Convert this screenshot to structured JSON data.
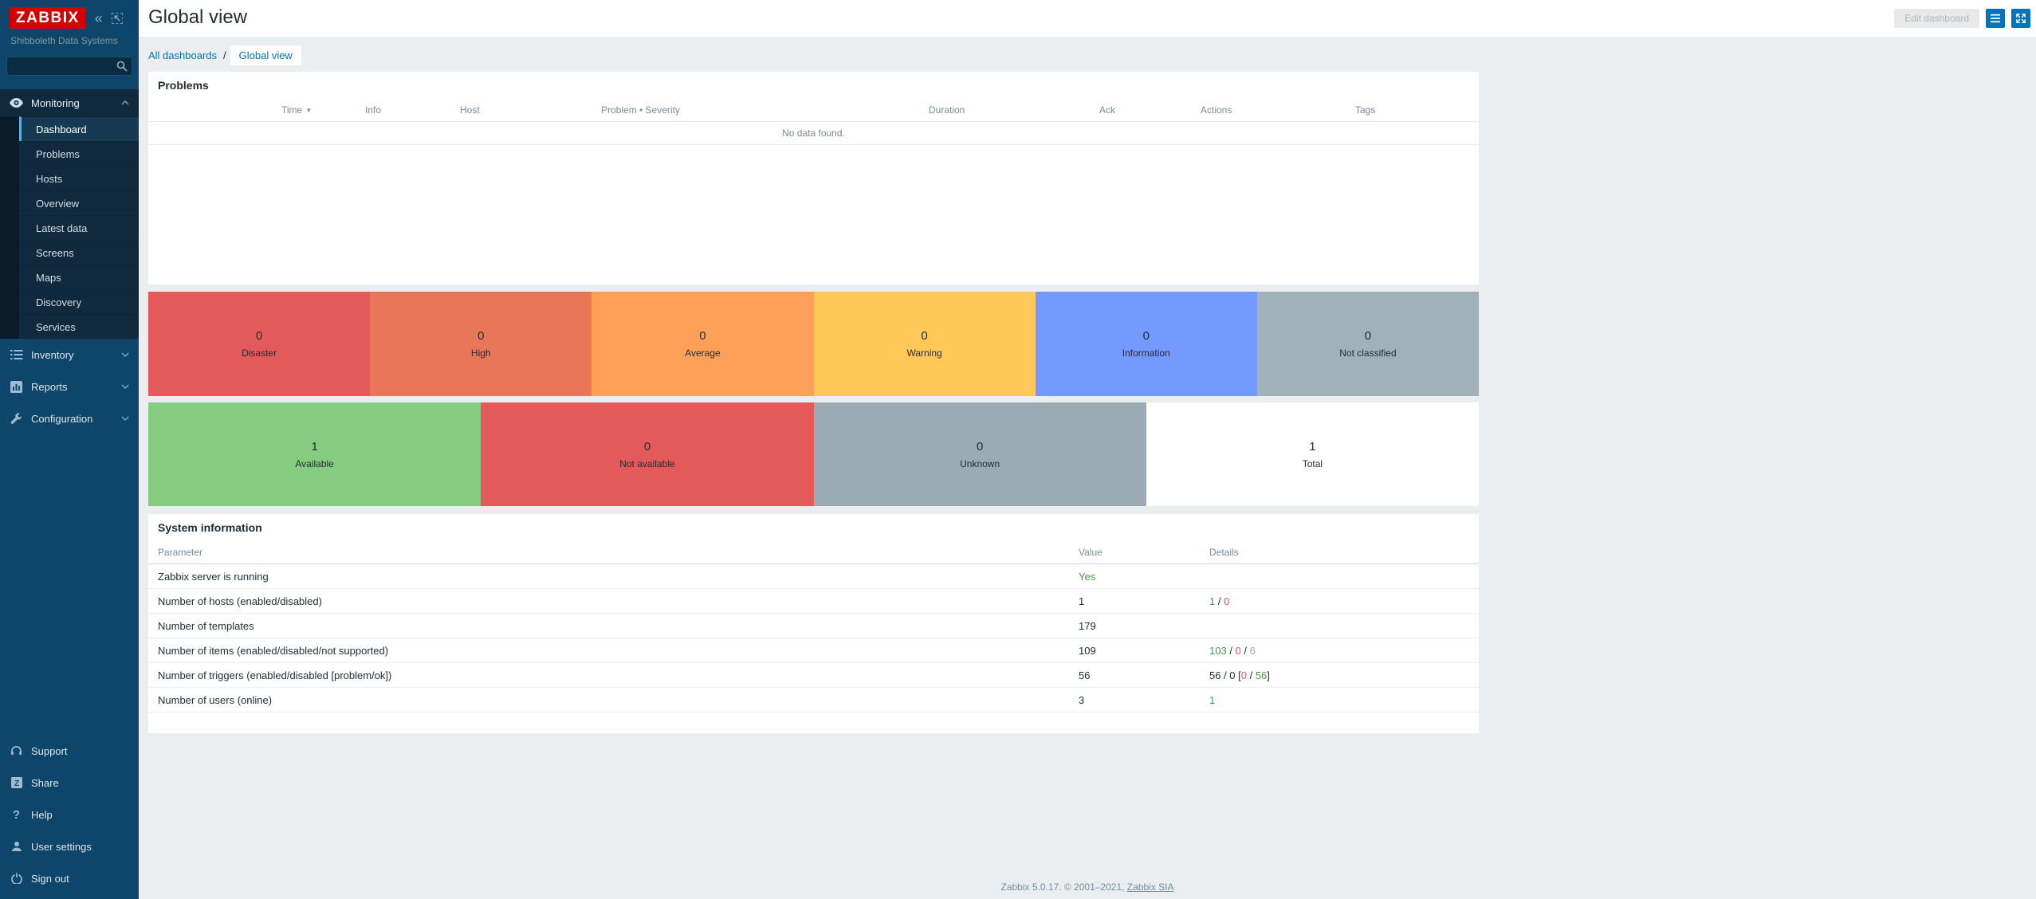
{
  "app": {
    "logo": "ZABBIX",
    "org": "Shibboleth Data Systems"
  },
  "header": {
    "title": "Global view",
    "edit_button": "Edit dashboard"
  },
  "breadcrumb": {
    "all_dashboards": "All dashboards",
    "separator": "/",
    "current": "Global view"
  },
  "sidebar": {
    "search_placeholder": "",
    "search_value": "",
    "monitoring": {
      "label": "Monitoring",
      "items": [
        "Dashboard",
        "Problems",
        "Hosts",
        "Overview",
        "Latest data",
        "Screens",
        "Maps",
        "Discovery",
        "Services"
      ],
      "active_item": "Dashboard"
    },
    "sections": [
      {
        "label": "Inventory"
      },
      {
        "label": "Reports"
      },
      {
        "label": "Configuration"
      }
    ],
    "footer_items": [
      "Support",
      "Share",
      "Help",
      "User settings",
      "Sign out"
    ]
  },
  "problems": {
    "title": "Problems",
    "columns": [
      "Time",
      "Info",
      "Host",
      "Problem • Severity",
      "Duration",
      "Ack",
      "Actions",
      "Tags"
    ],
    "sort_column": "Time",
    "sort_arrow": "▼",
    "empty_message": "No data found."
  },
  "severity_tiles": [
    {
      "label": "Disaster",
      "count": "0",
      "color": "#e45959"
    },
    {
      "label": "High",
      "count": "0",
      "color": "#e97659"
    },
    {
      "label": "Average",
      "count": "0",
      "color": "#ffa059"
    },
    {
      "label": "Warning",
      "count": "0",
      "color": "#ffc859"
    },
    {
      "label": "Information",
      "count": "0",
      "color": "#7499ff"
    },
    {
      "label": "Not classified",
      "count": "0",
      "color": "#a1b1ba"
    }
  ],
  "availability_tiles": [
    {
      "label": "Available",
      "count": "1",
      "color": "#85cb80"
    },
    {
      "label": "Not available",
      "count": "0",
      "color": "#e45959"
    },
    {
      "label": "Unknown",
      "count": "0",
      "color": "#9aabb6"
    },
    {
      "label": "Total",
      "count": "1",
      "color": "#ffffff"
    }
  ],
  "system_information": {
    "title": "System information",
    "columns": [
      "Parameter",
      "Value",
      "Details"
    ],
    "rows": [
      {
        "parameter": "Zabbix server is running",
        "value": "Yes",
        "value_color": "green",
        "details": []
      },
      {
        "parameter": "Number of hosts (enabled/disabled)",
        "value": "1",
        "value_color": "dark",
        "details": [
          {
            "text": "1",
            "color": "green"
          },
          {
            "text": " / ",
            "color": "dark"
          },
          {
            "text": "0",
            "color": "red"
          }
        ]
      },
      {
        "parameter": "Number of templates",
        "value": "179",
        "value_color": "dark",
        "details": []
      },
      {
        "parameter": "Number of items (enabled/disabled/not supported)",
        "value": "109",
        "value_color": "dark",
        "details": [
          {
            "text": "103",
            "color": "green"
          },
          {
            "text": " / ",
            "color": "dark"
          },
          {
            "text": "0",
            "color": "red"
          },
          {
            "text": " / ",
            "color": "dark"
          },
          {
            "text": "6",
            "color": "gray"
          }
        ]
      },
      {
        "parameter": "Number of triggers (enabled/disabled [problem/ok])",
        "value": "56",
        "value_color": "dark",
        "details": [
          {
            "text": "56 / 0 [",
            "color": "dark"
          },
          {
            "text": "0",
            "color": "red"
          },
          {
            "text": " / ",
            "color": "dark"
          },
          {
            "text": "56",
            "color": "green"
          },
          {
            "text": "]",
            "color": "dark"
          }
        ]
      },
      {
        "parameter": "Number of users (online)",
        "value": "3",
        "value_color": "dark",
        "details": [
          {
            "text": "1",
            "color": "green"
          }
        ]
      }
    ]
  },
  "footer": {
    "text": "Zabbix 5.0.17. © 2001–2021, ",
    "link": "Zabbix SIA"
  },
  "colors": {
    "accent_blue": "#0275b8",
    "status_green": "#429e47",
    "status_red": "#e45959",
    "status_gray": "#97aab3",
    "sidebar_bg": "#0e456a",
    "logo_red": "#d40000",
    "page_bg": "#ebeef0"
  }
}
